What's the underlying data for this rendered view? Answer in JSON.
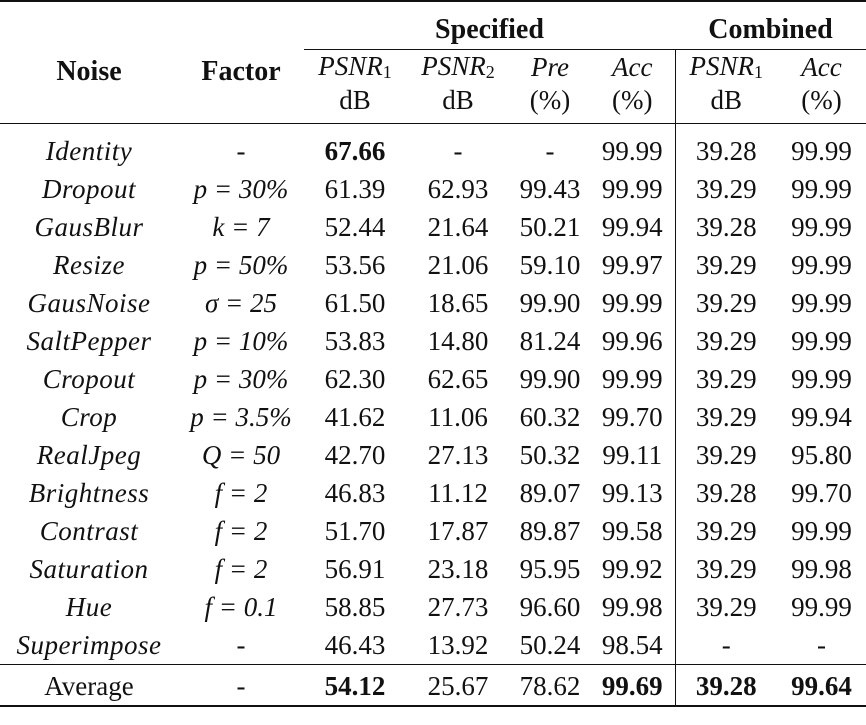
{
  "header": {
    "noise": "Noise",
    "factor": "Factor",
    "group_specified": "Specified",
    "group_combined": "Combined",
    "cols": [
      {
        "name": "PSNR",
        "sub": "1",
        "unit": "dB"
      },
      {
        "name": "PSNR",
        "sub": "2",
        "unit": "dB"
      },
      {
        "name": "Pre",
        "sub": "",
        "unit": "(%)"
      },
      {
        "name": "Acc",
        "sub": "",
        "unit": "(%)"
      },
      {
        "name": "PSNR",
        "sub": "1",
        "unit": "dB"
      },
      {
        "name": "Acc",
        "sub": "",
        "unit": "(%)"
      }
    ]
  },
  "rows": [
    {
      "noise": "Identity",
      "factor": "-",
      "psnr1": "67.66",
      "psnr2": "-",
      "pre": "-",
      "acc": "99.99",
      "c_psnr1": "39.28",
      "c_acc": "99.99"
    },
    {
      "noise": "Dropout",
      "factor": "p = 30%",
      "psnr1": "61.39",
      "psnr2": "62.93",
      "pre": "99.43",
      "acc": "99.99",
      "c_psnr1": "39.29",
      "c_acc": "99.99"
    },
    {
      "noise": "GausBlur",
      "factor": "k = 7",
      "psnr1": "52.44",
      "psnr2": "21.64",
      "pre": "50.21",
      "acc": "99.94",
      "c_psnr1": "39.28",
      "c_acc": "99.99"
    },
    {
      "noise": "Resize",
      "factor": "p = 50%",
      "psnr1": "53.56",
      "psnr2": "21.06",
      "pre": "59.10",
      "acc": "99.97",
      "c_psnr1": "39.29",
      "c_acc": "99.99"
    },
    {
      "noise": "GausNoise",
      "factor": "σ = 25",
      "psnr1": "61.50",
      "psnr2": "18.65",
      "pre": "99.90",
      "acc": "99.99",
      "c_psnr1": "39.29",
      "c_acc": "99.99"
    },
    {
      "noise": "SaltPepper",
      "factor": "p = 10%",
      "psnr1": "53.83",
      "psnr2": "14.80",
      "pre": "81.24",
      "acc": "99.96",
      "c_psnr1": "39.29",
      "c_acc": "99.99"
    },
    {
      "noise": "Cropout",
      "factor": "p = 30%",
      "psnr1": "62.30",
      "psnr2": "62.65",
      "pre": "99.90",
      "acc": "99.99",
      "c_psnr1": "39.29",
      "c_acc": "99.99"
    },
    {
      "noise": "Crop",
      "factor": "p = 3.5%",
      "psnr1": "41.62",
      "psnr2": "11.06",
      "pre": "60.32",
      "acc": "99.70",
      "c_psnr1": "39.29",
      "c_acc": "99.94"
    },
    {
      "noise": "RealJpeg",
      "factor": "Q = 50",
      "psnr1": "42.70",
      "psnr2": "27.13",
      "pre": "50.32",
      "acc": "99.11",
      "c_psnr1": "39.29",
      "c_acc": "95.80"
    },
    {
      "noise": "Brightness",
      "factor": "f = 2",
      "psnr1": "46.83",
      "psnr2": "11.12",
      "pre": "89.07",
      "acc": "99.13",
      "c_psnr1": "39.28",
      "c_acc": "99.70"
    },
    {
      "noise": "Contrast",
      "factor": "f = 2",
      "psnr1": "51.70",
      "psnr2": "17.87",
      "pre": "89.87",
      "acc": "99.58",
      "c_psnr1": "39.29",
      "c_acc": "99.99"
    },
    {
      "noise": "Saturation",
      "factor": "f = 2",
      "psnr1": "56.91",
      "psnr2": "23.18",
      "pre": "95.95",
      "acc": "99.92",
      "c_psnr1": "39.29",
      "c_acc": "99.98"
    },
    {
      "noise": "Hue",
      "factor": "f = 0.1",
      "psnr1": "58.85",
      "psnr2": "27.73",
      "pre": "96.60",
      "acc": "99.98",
      "c_psnr1": "39.29",
      "c_acc": "99.99"
    },
    {
      "noise": "Superimpose",
      "factor": "-",
      "psnr1": "46.43",
      "psnr2": "13.92",
      "pre": "50.24",
      "acc": "98.54",
      "c_psnr1": "-",
      "c_acc": "-"
    }
  ],
  "average": {
    "noise": "Average",
    "factor": "-",
    "psnr1": "54.12",
    "psnr2": "25.67",
    "pre": "78.62",
    "acc": "99.69",
    "c_psnr1": "39.28",
    "c_acc": "99.64"
  }
}
